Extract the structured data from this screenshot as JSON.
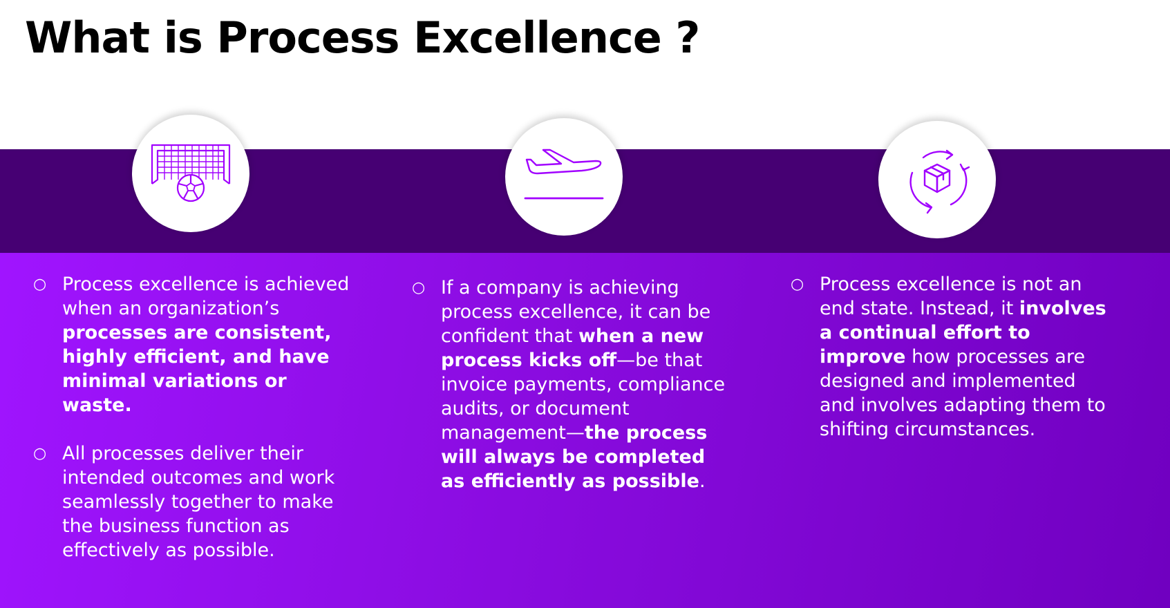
{
  "title": "What is Process Excellence ?",
  "colors": {
    "band_dark": "#460073",
    "panel_start": "#a014ff",
    "panel_end": "#7000c0",
    "icon_stroke": "#a100ff"
  },
  "columns": [
    {
      "icon": "soccer-goal-icon",
      "items": [
        {
          "bullet": "○",
          "parts": [
            {
              "text": "Process excellence is achieved when an organization’s ",
              "bold": false
            },
            {
              "text": "processes are consistent, highly efficient, and have minimal variations or waste.",
              "bold": true
            }
          ]
        },
        {
          "bullet": "○",
          "parts": [
            {
              "text": "All processes deliver their intended outcomes and work seamlessly together to make the business function as effectively as possible.",
              "bold": false
            }
          ]
        }
      ]
    },
    {
      "icon": "airplane-takeoff-icon",
      "items": [
        {
          "bullet": "○",
          "parts": [
            {
              "text": "If a company is achieving process excellence, it can be confident that ",
              "bold": false
            },
            {
              "text": "when a new process kicks off",
              "bold": true
            },
            {
              "text": "—be that invoice payments, compliance audits, or document management—",
              "bold": false
            },
            {
              "text": "the process will always be completed as efficiently as possible",
              "bold": true
            },
            {
              "text": ".",
              "bold": false
            }
          ]
        }
      ]
    },
    {
      "icon": "box-cycle-icon",
      "items": [
        {
          "bullet": "○",
          "parts": [
            {
              "text": "Process excellence is not an end state. Instead, it ",
              "bold": false
            },
            {
              "text": "involves a continual effort to improve",
              "bold": true
            },
            {
              "text": " how processes are designed and implemented and involves adapting them to shifting circumstances.",
              "bold": false
            }
          ]
        }
      ]
    }
  ]
}
